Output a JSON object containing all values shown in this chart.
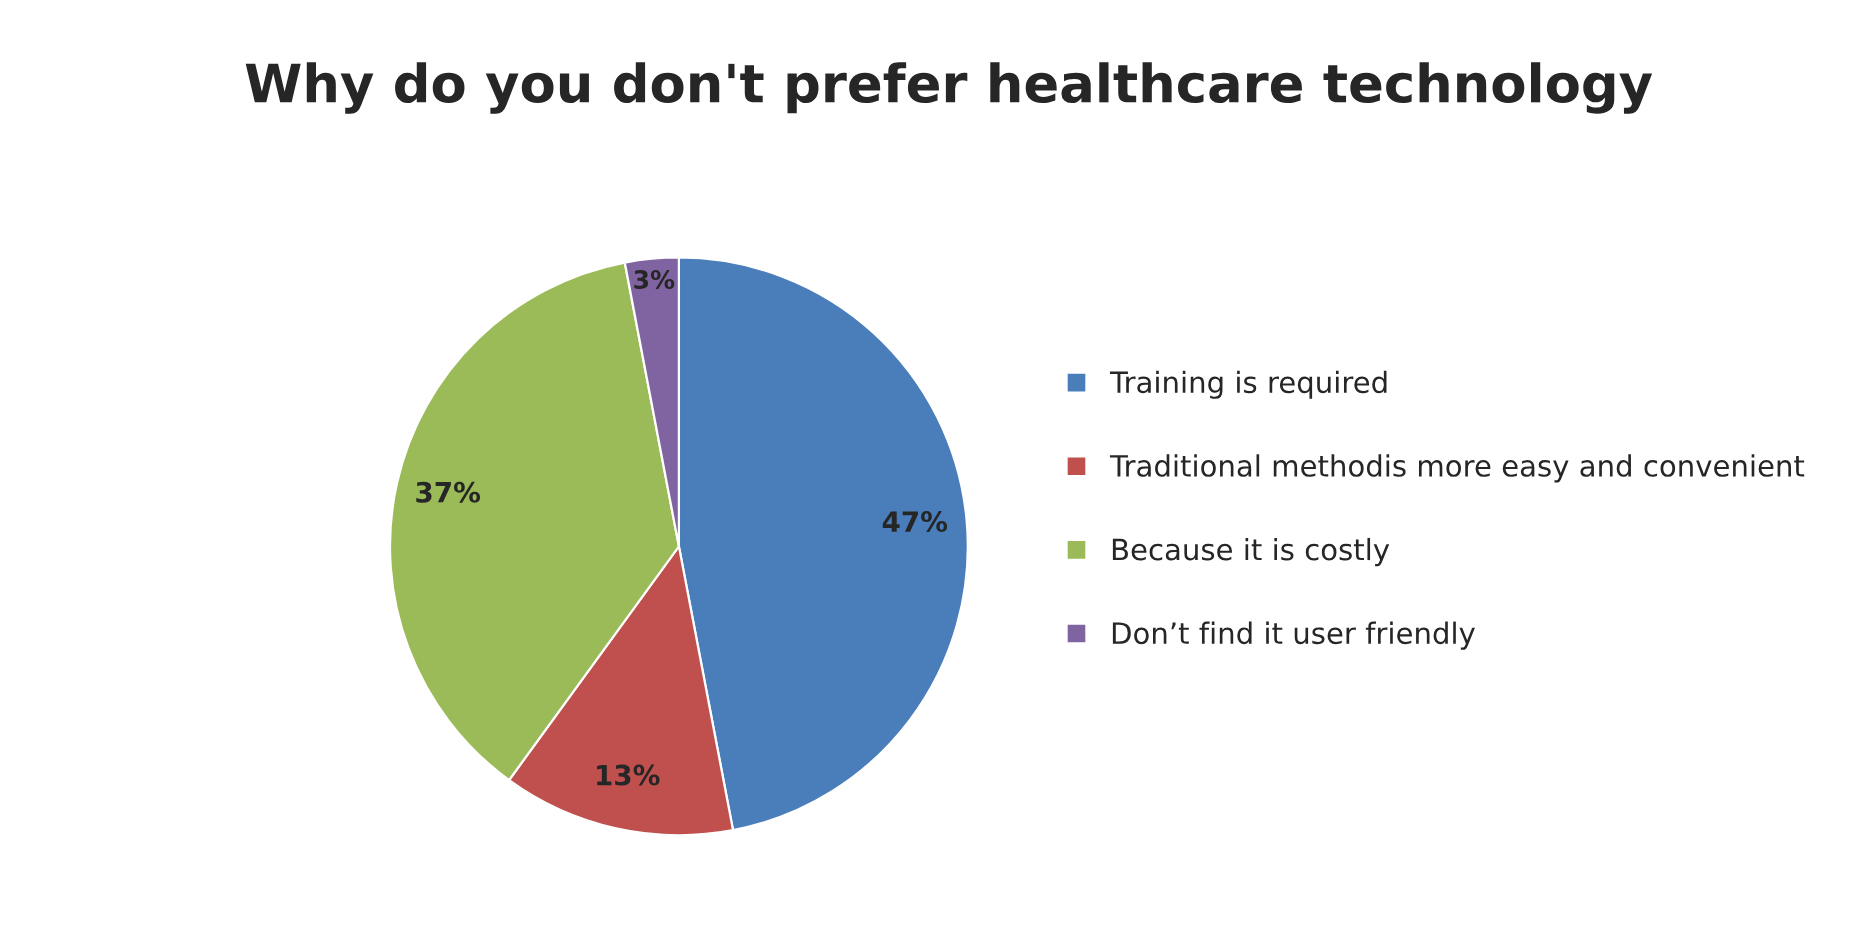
{
  "chart_data": {
    "type": "pie",
    "title": "Why do you don't prefer healthcare technology",
    "categories": [
      "Training is required",
      "Traditional methodis more easy and convenient",
      "Because it is costly",
      "Don’t find it user friendly"
    ],
    "values": [
      47,
      13,
      37,
      3
    ],
    "colors": [
      "#4a7ebb",
      "#c0504d",
      "#9bbb59",
      "#8064a2"
    ],
    "value_labels": [
      "47%",
      "13%",
      "37%",
      "3%"
    ],
    "legend": "right"
  }
}
